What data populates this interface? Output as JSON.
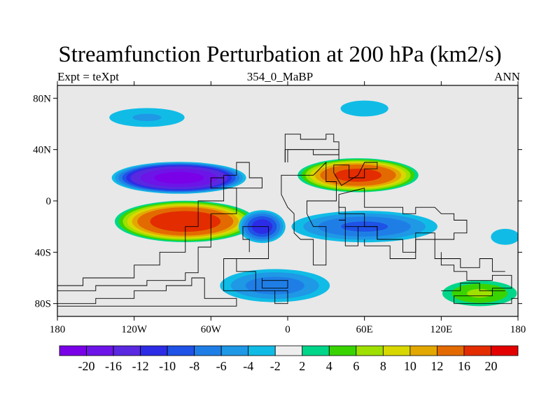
{
  "title": "Streamfunction Perturbation at 200 hPa (km2/s)",
  "subtitle_left": "Expt = teXpt",
  "subtitle_center": "354_0_MaBP",
  "subtitle_right": "ANN",
  "map": {
    "projection": "cylindrical-equidistant",
    "lon_range": [
      -180,
      180
    ],
    "lat_range": [
      -90,
      90
    ],
    "background_color": "#e8e8e8",
    "x_ticks": [
      {
        "lon": -180,
        "label": "180"
      },
      {
        "lon": -120,
        "label": "120W"
      },
      {
        "lon": -60,
        "label": "60W"
      },
      {
        "lon": 0,
        "label": "0"
      },
      {
        "lon": 60,
        "label": "60E"
      },
      {
        "lon": 120,
        "label": "120E"
      },
      {
        "lon": 180,
        "label": "180"
      }
    ],
    "y_ticks": [
      {
        "lat": 80,
        "label": "80N"
      },
      {
        "lat": 40,
        "label": "40N"
      },
      {
        "lat": 0,
        "label": "0"
      },
      {
        "lat": -40,
        "label": "40S"
      },
      {
        "lat": -80,
        "label": "80S"
      }
    ],
    "field_blobs": [
      {
        "name": "north-pacific-low",
        "lon": -85,
        "lat": 18,
        "rlon": 55,
        "rlat": 13,
        "peak": -21
      },
      {
        "name": "south-pacific-high",
        "lon": -80,
        "lat": -16,
        "rlon": 58,
        "rlat": 17,
        "peak": 19
      },
      {
        "name": "tibetan-high",
        "lon": 55,
        "lat": 20,
        "rlon": 50,
        "rlat": 14,
        "peak": 17
      },
      {
        "name": "south-atlantic-low",
        "lon": -20,
        "lat": -20,
        "rlon": 20,
        "rlat": 14,
        "peak": -11
      },
      {
        "name": "south-indian-low",
        "lon": 60,
        "lat": -20,
        "rlon": 65,
        "rlat": 14,
        "peak": -8
      },
      {
        "name": "high-north-low",
        "lon": -110,
        "lat": 65,
        "rlon": 40,
        "rlat": 10,
        "peak": -4
      },
      {
        "name": "arctic-low",
        "lon": 60,
        "lat": 72,
        "rlon": 30,
        "rlat": 10,
        "peak": -3
      },
      {
        "name": "southern-ocean-low",
        "lon": -10,
        "lat": -66,
        "rlon": 50,
        "rlat": 15,
        "peak": -7
      },
      {
        "name": "eastern-pacific-low",
        "lon": 170,
        "lat": -28,
        "rlon": 18,
        "rlat": 10,
        "peak": -3
      },
      {
        "name": "antarctic-high",
        "lon": 150,
        "lat": -72,
        "rlon": 35,
        "rlat": 12,
        "peak": 6
      }
    ],
    "continent_outlines": [
      [
        [
          -180,
          -70
        ],
        [
          -150,
          -70
        ],
        [
          -150,
          -66
        ],
        [
          -110,
          -66
        ],
        [
          -110,
          -62
        ],
        [
          -80,
          -62
        ],
        [
          -80,
          -56
        ],
        [
          -70,
          -56
        ],
        [
          -70,
          -36
        ],
        [
          -60,
          -36
        ],
        [
          -60,
          -10
        ],
        [
          -40,
          -10
        ],
        [
          -40,
          10
        ],
        [
          -60,
          10
        ],
        [
          -60,
          18
        ],
        [
          -50,
          18
        ],
        [
          -50,
          0
        ],
        [
          -70,
          0
        ],
        [
          -70,
          -20
        ],
        [
          -80,
          -20
        ],
        [
          -80,
          -40
        ],
        [
          -100,
          -40
        ],
        [
          -100,
          -50
        ],
        [
          -120,
          -50
        ],
        [
          -120,
          -60
        ],
        [
          -160,
          -60
        ],
        [
          -160,
          -66
        ],
        [
          -180,
          -66
        ]
      ],
      [
        [
          -180,
          -80
        ],
        [
          -150,
          -80
        ],
        [
          -150,
          -76
        ],
        [
          -120,
          -76
        ],
        [
          -120,
          -70
        ],
        [
          -95,
          -70
        ],
        [
          -95,
          -66
        ],
        [
          -75,
          -66
        ],
        [
          -75,
          -60
        ],
        [
          -65,
          -60
        ],
        [
          -65,
          -76
        ],
        [
          -40,
          -76
        ],
        [
          -40,
          -82
        ],
        [
          -180,
          -82
        ]
      ],
      [
        [
          -50,
          10
        ],
        [
          -20,
          10
        ],
        [
          -20,
          18
        ],
        [
          -30,
          18
        ],
        [
          -30,
          30
        ],
        [
          -40,
          30
        ],
        [
          -40,
          20
        ],
        [
          -50,
          20
        ],
        [
          -50,
          10
        ]
      ],
      [
        [
          -30,
          -40
        ],
        [
          -30,
          -30
        ],
        [
          -35,
          -30
        ],
        [
          -35,
          -20
        ],
        [
          -15,
          -20
        ],
        [
          -15,
          -45
        ],
        [
          -50,
          -45
        ],
        [
          -50,
          -70
        ],
        [
          -10,
          -70
        ],
        [
          -10,
          -80
        ],
        [
          0,
          -80
        ],
        [
          0,
          -70
        ],
        [
          -25,
          -70
        ],
        [
          -25,
          -55
        ],
        [
          -40,
          -55
        ],
        [
          -40,
          -45
        ],
        [
          -30,
          -45
        ]
      ],
      [
        [
          -2,
          30
        ],
        [
          -2,
          52
        ],
        [
          10,
          52
        ],
        [
          10,
          48
        ],
        [
          30,
          48
        ],
        [
          30,
          52
        ],
        [
          36,
          52
        ],
        [
          36,
          46
        ],
        [
          40,
          46
        ],
        [
          40,
          36
        ],
        [
          20,
          36
        ],
        [
          20,
          40
        ],
        [
          0,
          40
        ],
        [
          0,
          30
        ]
      ],
      [
        [
          -2,
          30
        ],
        [
          -2,
          40
        ],
        [
          40,
          40
        ],
        [
          40,
          32
        ]
      ],
      [
        [
          -5,
          5
        ],
        [
          -5,
          20
        ],
        [
          20,
          20
        ],
        [
          30,
          30
        ],
        [
          30,
          15
        ],
        [
          38,
          15
        ],
        [
          38,
          0
        ],
        [
          15,
          0
        ],
        [
          15,
          -10
        ],
        [
          20,
          -20
        ],
        [
          30,
          -20
        ],
        [
          30,
          -50
        ],
        [
          20,
          -50
        ],
        [
          20,
          -30
        ],
        [
          10,
          -30
        ],
        [
          5,
          -25
        ],
        [
          5,
          -10
        ],
        [
          0,
          -5
        ],
        [
          -5,
          5
        ]
      ],
      [
        [
          36,
          22
        ],
        [
          36,
          28
        ],
        [
          48,
          28
        ],
        [
          48,
          18
        ],
        [
          60,
          18
        ],
        [
          60,
          25
        ],
        [
          70,
          25
        ],
        [
          70,
          30
        ],
        [
          60,
          30
        ],
        [
          55,
          20
        ],
        [
          42,
          12
        ],
        [
          36,
          22
        ]
      ],
      [
        [
          60,
          10
        ],
        [
          60,
          -5
        ],
        [
          90,
          -5
        ],
        [
          90,
          -10
        ],
        [
          100,
          -10
        ],
        [
          100,
          -5
        ],
        [
          115,
          -5
        ],
        [
          120,
          -10
        ],
        [
          130,
          -10
        ],
        [
          130,
          -15
        ],
        [
          140,
          -15
        ],
        [
          140,
          -25
        ],
        [
          130,
          -25
        ],
        [
          130,
          -30
        ],
        [
          115,
          -30
        ],
        [
          115,
          -25
        ],
        [
          100,
          -25
        ],
        [
          100,
          -40
        ],
        [
          90,
          -40
        ],
        [
          90,
          -30
        ],
        [
          70,
          -30
        ],
        [
          70,
          -20
        ],
        [
          60,
          -20
        ],
        [
          60,
          -10
        ],
        [
          45,
          -10
        ],
        [
          45,
          -5
        ],
        [
          40,
          -5
        ],
        [
          40,
          5
        ],
        [
          60,
          10
        ]
      ],
      [
        [
          40,
          0
        ],
        [
          40,
          -10
        ],
        [
          45,
          -10
        ],
        [
          45,
          -20
        ],
        [
          55,
          -20
        ],
        [
          55,
          -35
        ],
        [
          45,
          -35
        ],
        [
          45,
          -15
        ],
        [
          40,
          -15
        ]
      ],
      [
        [
          55,
          -20
        ],
        [
          70,
          -20
        ],
        [
          70,
          -30
        ]
      ],
      [
        [
          60,
          -30
        ],
        [
          60,
          -35
        ],
        [
          80,
          -35
        ],
        [
          80,
          -45
        ],
        [
          100,
          -45
        ],
        [
          100,
          -30
        ],
        [
          115,
          -30
        ],
        [
          115,
          -45
        ],
        [
          135,
          -45
        ],
        [
          135,
          -52
        ],
        [
          150,
          -52
        ],
        [
          150,
          -45
        ],
        [
          160,
          -45
        ],
        [
          160,
          -55
        ],
        [
          170,
          -55
        ]
      ],
      [
        [
          120,
          -40
        ],
        [
          120,
          -50
        ],
        [
          130,
          -50
        ],
        [
          130,
          -55
        ],
        [
          140,
          -55
        ],
        [
          140,
          -62
        ],
        [
          160,
          -62
        ],
        [
          160,
          -58
        ],
        [
          175,
          -58
        ],
        [
          175,
          -68
        ],
        [
          160,
          -68
        ],
        [
          160,
          -74
        ],
        [
          130,
          -74
        ],
        [
          130,
          -80
        ],
        [
          175,
          -80
        ],
        [
          175,
          -76
        ],
        [
          180,
          -76
        ]
      ],
      [
        [
          120,
          -70
        ],
        [
          135,
          -70
        ],
        [
          135,
          -64
        ],
        [
          150,
          -64
        ],
        [
          150,
          -70
        ],
        [
          170,
          -70
        ]
      ],
      [
        [
          -20,
          -60
        ],
        [
          -20,
          -68
        ],
        [
          0,
          -68
        ],
        [
          0,
          -62
        ],
        [
          -20,
          -62
        ]
      ]
    ]
  },
  "colorbar": {
    "colors": [
      "#7a00e8",
      "#6d14e8",
      "#5a28e0",
      "#2c2ce6",
      "#1f52e6",
      "#1f7ee6",
      "#1f98e6",
      "#10bce6",
      "#eeeeee",
      "#00d68a",
      "#39d400",
      "#9ee000",
      "#d8d800",
      "#e3a800",
      "#e36a00",
      "#e32c00",
      "#e30000"
    ],
    "labels": [
      "-20",
      "-16",
      "-12",
      "-10",
      "-8",
      "-6",
      "-4",
      "-2",
      "2",
      "4",
      "6",
      "8",
      "10",
      "12",
      "16",
      "20"
    ],
    "levels": [
      -20,
      -16,
      -12,
      -10,
      -8,
      -6,
      -4,
      -2,
      2,
      4,
      6,
      8,
      10,
      12,
      16,
      20
    ]
  }
}
